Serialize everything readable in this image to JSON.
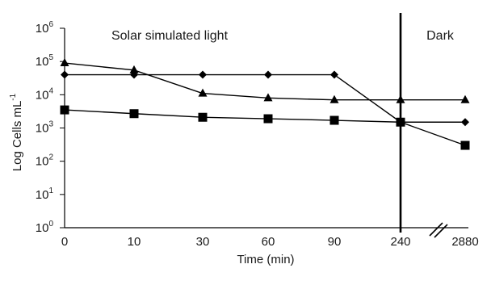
{
  "chart_data": {
    "type": "line",
    "title": "",
    "xlabel": "Time (min)",
    "ylabel": "Log Cells mL",
    "ylabel_exponent": "-1",
    "y_scale": "log10",
    "ylim": [
      1,
      1000000
    ],
    "grid": false,
    "categories": [
      "0",
      "10",
      "30",
      "60",
      "90",
      "240",
      "2880"
    ],
    "y_ticks": [
      {
        "base": "10",
        "exp": "0"
      },
      {
        "base": "10",
        "exp": "1"
      },
      {
        "base": "10",
        "exp": "2"
      },
      {
        "base": "10",
        "exp": "3"
      },
      {
        "base": "10",
        "exp": "4"
      },
      {
        "base": "10",
        "exp": "5"
      },
      {
        "base": "10",
        "exp": "6"
      }
    ],
    "series": [
      {
        "marker": "diamond",
        "values": [
          40000,
          40000,
          40000,
          40000,
          40000,
          1500,
          1500
        ]
      },
      {
        "marker": "triangle",
        "values": [
          90000,
          55000,
          11000,
          8000,
          7000,
          7000,
          7000
        ]
      },
      {
        "marker": "square",
        "values": [
          3500,
          2700,
          2100,
          1900,
          1700,
          1500,
          300
        ]
      }
    ],
    "annotations": {
      "light_label": "Solar simulated light",
      "dark_label": "Dark",
      "divider_between": [
        "240",
        "2880"
      ],
      "axis_break": "x"
    }
  }
}
